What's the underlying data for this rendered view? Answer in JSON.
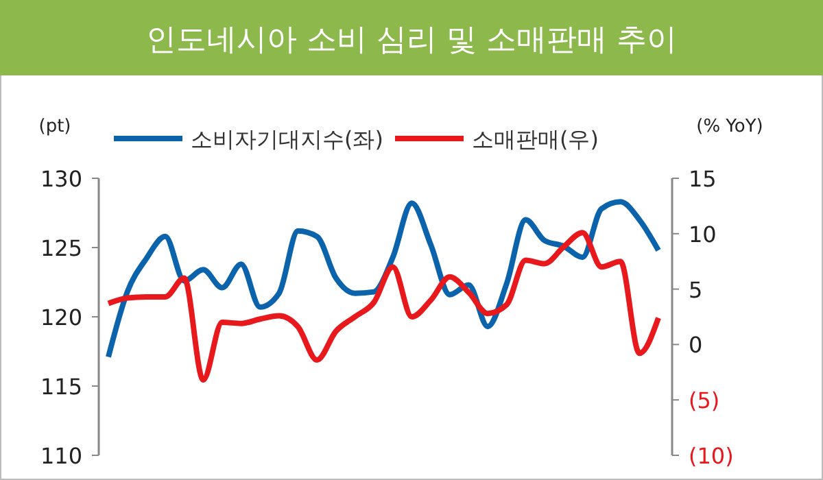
{
  "chart_data": {
    "type": "line",
    "title": "인도네시아 소비 심리 및 소매판매 추이",
    "ylabel": "(pt)",
    "y2label": "(% YoY)",
    "categories": [
      null,
      null,
      null,
      null,
      null,
      null,
      null,
      null,
      null,
      null,
      null,
      null,
      null,
      null,
      null,
      null,
      null,
      null,
      null,
      null,
      null,
      null,
      null,
      null,
      null,
      null,
      null,
      null,
      null,
      null
    ],
    "ylim": [
      110,
      130
    ],
    "yticks": [
      110,
      115,
      120,
      125,
      130
    ],
    "y2lim": [
      -10,
      15
    ],
    "y2ticks": [
      {
        "value": -10,
        "label": "(10)"
      },
      {
        "value": -5,
        "label": "(5)"
      },
      0,
      5,
      10,
      15
    ],
    "tick_labels": "y",
    "grid": false,
    "legend": "top",
    "marker": "none",
    "line_style": "solid",
    "series": [
      {
        "name": "소비자기대지수(좌)",
        "color": "#0b63ab",
        "values": [
          117.1,
          121.8,
          124.2,
          125.8,
          122.6,
          123.4,
          122.1,
          123.8,
          120.7,
          121.7,
          126.2,
          125.8,
          122.8,
          121.7,
          121.8,
          124.3,
          128.2,
          125.2,
          121.6,
          122.3,
          119.3,
          122.4,
          127,
          125.5,
          125.1,
          124.3,
          127.8,
          128.3,
          127,
          124.8
        ]
      },
      {
        "name": "소매판매(우)",
        "color": "#e8191c",
        "axis": "y2",
        "values": [
          3.7,
          4.2,
          4.3,
          4.3,
          6,
          -3.2,
          2,
          1.9,
          2.3,
          2.6,
          1.6,
          -1.4,
          1.2,
          2.5,
          3.8,
          7,
          2.5,
          4,
          6.1,
          4.7,
          2.8,
          3.6,
          7.6,
          7.3,
          8.8,
          10.1,
          7,
          7.5,
          -0.8,
          2.4
        ]
      }
    ]
  }
}
